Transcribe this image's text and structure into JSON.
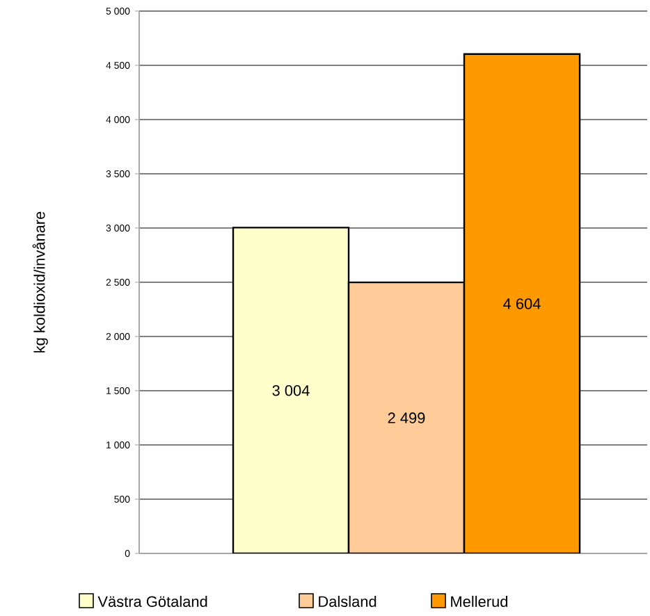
{
  "chart_data": {
    "type": "bar",
    "ylabel": "kg koldioxid/invånare",
    "categories": [
      null
    ],
    "series": [
      {
        "name": "Västra Götaland",
        "color": "#ffffcc",
        "values": [
          3004
        ],
        "value_labels": [
          "3 004"
        ]
      },
      {
        "name": "Dalsland",
        "color": "#ffcc99",
        "values": [
          2499
        ],
        "value_labels": [
          "2 499"
        ]
      },
      {
        "name": "Mellerud",
        "color": "#ff9900",
        "values": [
          4604
        ],
        "value_labels": [
          "4 604"
        ]
      }
    ],
    "ylim": [
      0,
      5000
    ],
    "yticks": [
      {
        "value": 0,
        "label": "0"
      },
      {
        "value": 500,
        "label": "500"
      },
      {
        "value": 1000,
        "label": "1 000"
      },
      {
        "value": 1500,
        "label": "1 500"
      },
      {
        "value": 2000,
        "label": "2 000"
      },
      {
        "value": 2500,
        "label": "2 500"
      },
      {
        "value": 3000,
        "label": "3 000"
      },
      {
        "value": 3500,
        "label": "3 500"
      },
      {
        "value": 4000,
        "label": "4 000"
      },
      {
        "value": 4500,
        "label": "4 500"
      },
      {
        "value": 5000,
        "label": "5 000"
      }
    ],
    "grid": "y",
    "legend": "bottom"
  }
}
